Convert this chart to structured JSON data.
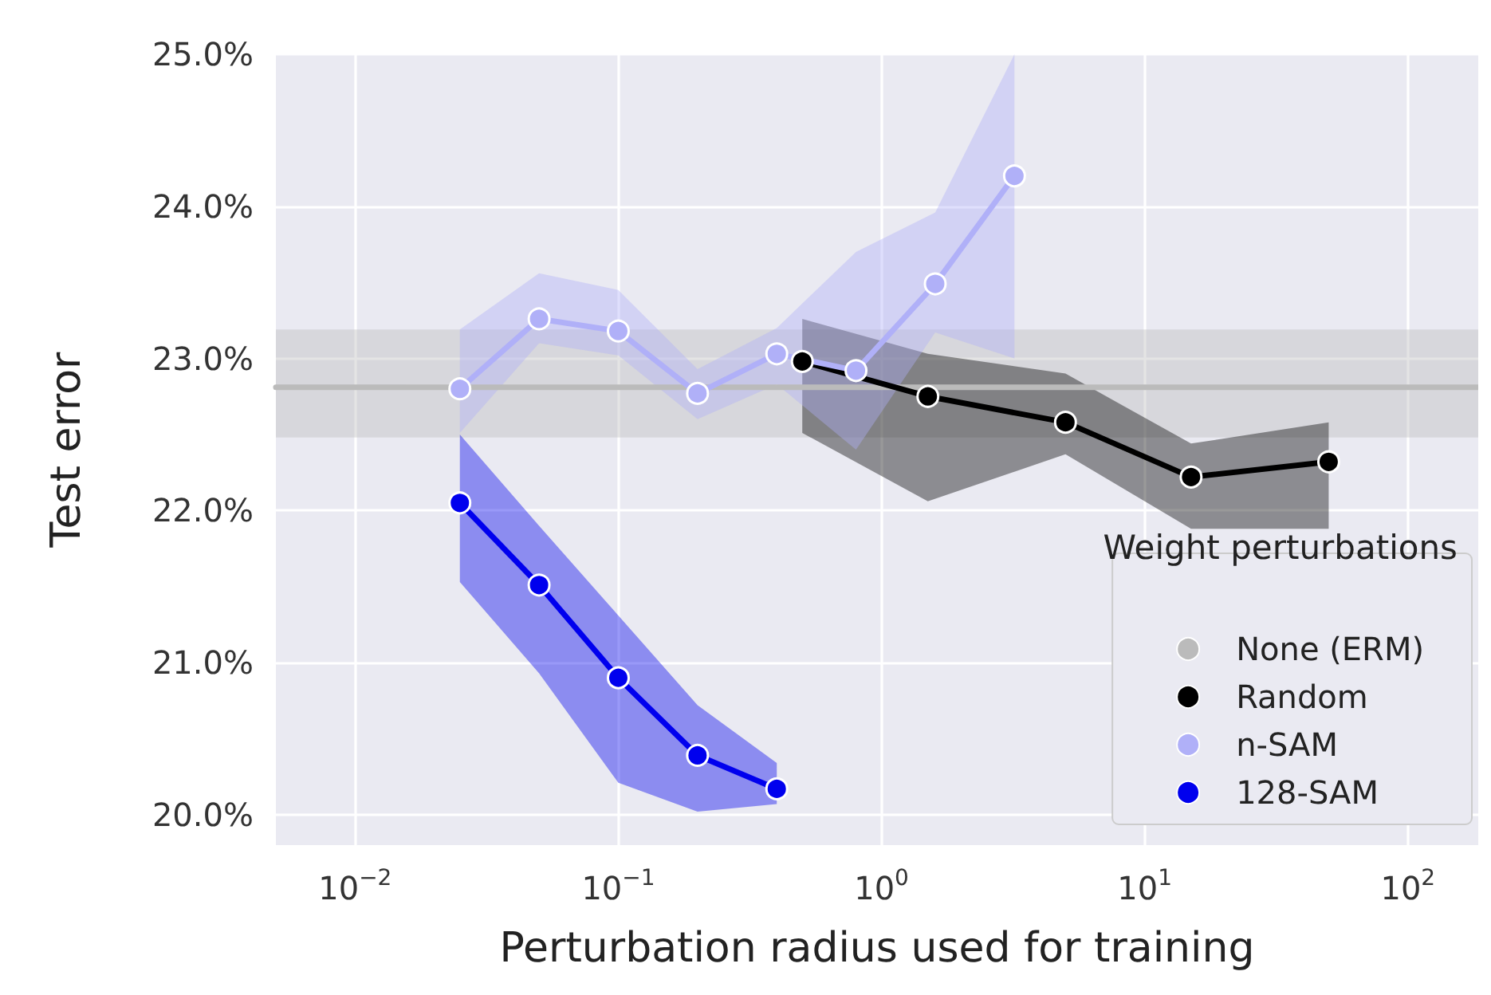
{
  "chart_data": {
    "type": "line",
    "xlabel": "Perturbation radius used for training",
    "ylabel": "Test error",
    "legend_title": "Weight perturbations",
    "log": "x",
    "grid": true,
    "legend": "bottom right",
    "marker": "circle",
    "line_style": "solid",
    "xlim": [
      0.005,
      185
    ],
    "ylim": [
      19.8,
      25.0
    ],
    "xticks": [
      {
        "value": 0.01,
        "label": "10$^{−2}$"
      },
      {
        "value": 0.1,
        "label": "10$^{−1}$"
      },
      {
        "value": 1,
        "label": "10$^{0}$"
      },
      {
        "value": 10,
        "label": "10$^{1}$"
      },
      {
        "value": 100,
        "label": "10$^{2}$"
      }
    ],
    "yticks": [
      {
        "value": 20,
        "label": "20.0%"
      },
      {
        "value": 21,
        "label": "21.0%"
      },
      {
        "value": 22,
        "label": "22.0%"
      },
      {
        "value": 23,
        "label": "23.0%"
      },
      {
        "value": 24,
        "label": "24.0%"
      },
      {
        "value": 25,
        "label": "25.0%"
      }
    ],
    "series": [
      {
        "name": "None (ERM)",
        "color": "#bbbbbb",
        "marker": "none",
        "x": [
          0.005,
          185
        ],
        "values": [
          22.81,
          22.81
        ],
        "lower": [
          22.48,
          22.48
        ],
        "upper": [
          23.19,
          23.19
        ]
      },
      {
        "name": "Random",
        "color": "#000000",
        "x": [
          0.5,
          1.5,
          5,
          15,
          50
        ],
        "values": [
          22.98,
          22.75,
          22.58,
          22.22,
          22.32
        ],
        "lower": [
          22.51,
          22.06,
          22.37,
          21.88,
          21.88
        ],
        "upper": [
          23.26,
          23.03,
          22.9,
          22.44,
          22.58
        ]
      },
      {
        "name": "n-SAM",
        "color": "#b0b0f8",
        "x": [
          0.025,
          0.05,
          0.1,
          0.2,
          0.4,
          0.8,
          1.6,
          3.2
        ],
        "values": [
          22.8,
          23.26,
          23.18,
          22.77,
          23.03,
          22.92,
          23.49,
          24.2
        ],
        "lower": [
          22.51,
          23.1,
          23.02,
          22.6,
          22.83,
          22.4,
          23.17,
          23.0
        ],
        "upper": [
          23.19,
          23.56,
          23.45,
          22.93,
          23.2,
          23.7,
          23.96,
          25.0
        ]
      },
      {
        "name": "128-SAM",
        "color": "#0000ee",
        "x": [
          0.025,
          0.05,
          0.1,
          0.2,
          0.4
        ],
        "values": [
          22.05,
          21.51,
          20.9,
          20.39,
          20.17
        ],
        "lower": [
          21.53,
          20.93,
          20.21,
          20.02,
          20.07
        ],
        "upper": [
          22.5,
          21.9,
          21.31,
          20.72,
          20.34
        ]
      }
    ]
  }
}
